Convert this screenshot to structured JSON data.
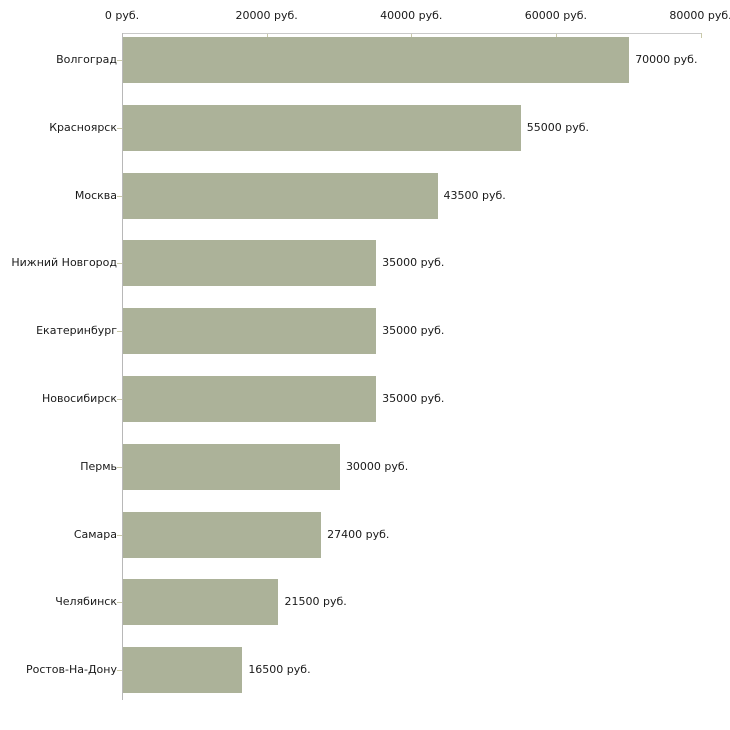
{
  "chart_data": {
    "type": "bar",
    "orientation": "horizontal",
    "title": "",
    "xlabel": "",
    "ylabel": "",
    "categories": [
      "Волгоград",
      "Красноярск",
      "Москва",
      "Нижний Новгород",
      "Екатеринбург",
      "Новосибирск",
      "Пермь",
      "Самара",
      "Челябинск",
      "Ростов-На-Дону"
    ],
    "values": [
      70000,
      55000,
      43500,
      35000,
      35000,
      35000,
      30000,
      27400,
      21500,
      16500
    ],
    "value_labels": [
      "70000 руб.",
      "55000 руб.",
      "43500 руб.",
      "35000 руб.",
      "35000 руб.",
      "35000 руб.",
      "30000 руб.",
      "27400 руб.",
      "21500 руб.",
      "16500 руб."
    ],
    "x_axis": {
      "position": "top",
      "xlim": [
        0,
        80000
      ],
      "ticks": [
        0,
        20000,
        40000,
        60000,
        80000
      ],
      "tick_labels": [
        "0 руб.",
        "20000 руб.",
        "40000 руб.",
        "60000 руб.",
        "80000 руб."
      ]
    },
    "grid": false,
    "legend": false,
    "colors": {
      "bar": "#acb299",
      "axis_line_h": "#c9c9c9",
      "axis_line_v": "#b8b8b8",
      "tick_mark": "#c9c9a9",
      "text": "#1a1a1a",
      "background": "#ffffff"
    }
  }
}
